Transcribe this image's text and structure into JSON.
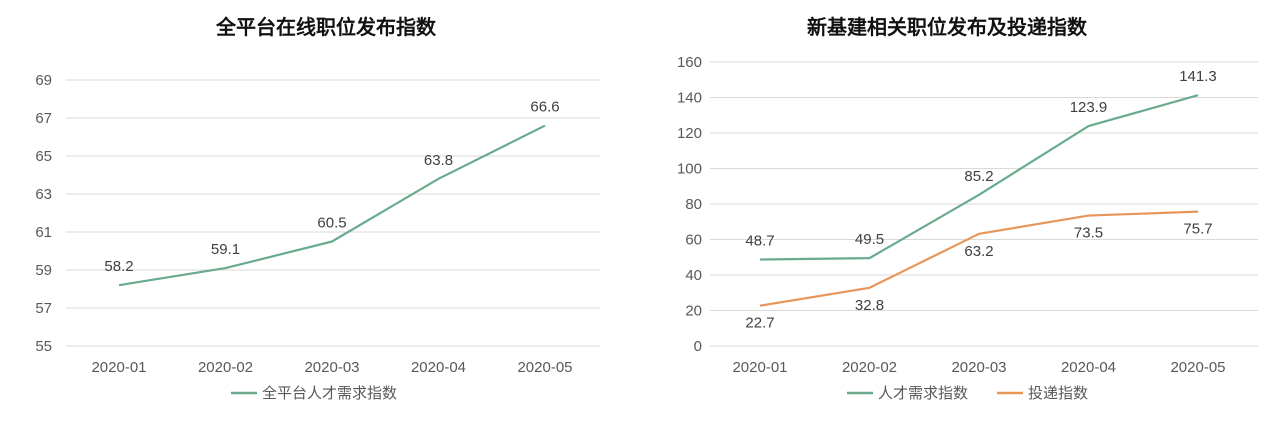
{
  "chart_data": [
    {
      "type": "line",
      "title": "全平台在线职位发布指数",
      "categories": [
        "2020-01",
        "2020-02",
        "2020-03",
        "2020-04",
        "2020-05"
      ],
      "yticks": [
        "55",
        "57",
        "59",
        "61",
        "63",
        "65",
        "67",
        "69"
      ],
      "ylim": [
        55,
        69
      ],
      "grid": true,
      "legend_position": "bottom",
      "series": [
        {
          "name": "全平台人才需求指数",
          "values": [
            58.2,
            59.1,
            60.5,
            63.8,
            66.6
          ],
          "labels": [
            "58.2",
            "59.1",
            "60.5",
            "63.8",
            "66.6"
          ],
          "color": "#6aab8e"
        }
      ]
    },
    {
      "type": "line",
      "title": "新基建相关职位发布及投递指数",
      "categories": [
        "2020-01",
        "2020-02",
        "2020-03",
        "2020-04",
        "2020-05"
      ],
      "yticks": [
        "0",
        "20",
        "40",
        "60",
        "80",
        "100",
        "120",
        "140",
        "160"
      ],
      "ylim": [
        0,
        160
      ],
      "grid": true,
      "legend_position": "bottom",
      "series": [
        {
          "name": "人才需求指数",
          "values": [
            48.7,
            49.5,
            85.2,
            123.9,
            141.3
          ],
          "labels": [
            "48.7",
            "49.5",
            "85.2",
            "123.9",
            "141.3"
          ],
          "color": "#6aab8e"
        },
        {
          "name": "投递指数",
          "values": [
            22.7,
            32.8,
            63.2,
            73.5,
            75.7
          ],
          "labels": [
            "22.7",
            "32.8",
            "63.2",
            "73.5",
            "75.7"
          ],
          "color": "#e8955a"
        }
      ]
    }
  ]
}
